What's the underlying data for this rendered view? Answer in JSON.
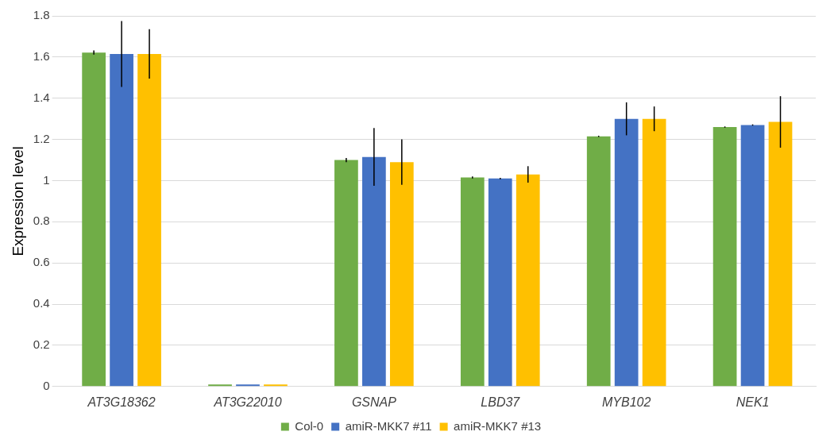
{
  "chart_data": {
    "type": "bar",
    "ylabel": "Expression level",
    "categories": [
      "AT3G18362",
      "AT3G22010",
      "GSNAP",
      "LBD37",
      "MYB102",
      "NEK1"
    ],
    "series": [
      {
        "name": "Col-0",
        "color": "#70ad47",
        "values": [
          1.622,
          0.01,
          1.1,
          1.015,
          1.215,
          1.26
        ],
        "errors": [
          0.01,
          null,
          0.01,
          0.005,
          0.003,
          0.003
        ]
      },
      {
        "name": "amiR-MKK7 #11",
        "color": "#4472c4",
        "values": [
          1.615,
          0.01,
          1.115,
          1.01,
          1.3,
          1.27
        ],
        "errors": [
          0.16,
          null,
          0.14,
          0.003,
          0.08,
          0.003
        ]
      },
      {
        "name": "amiR-MKK7 #13",
        "color": "#ffc000",
        "values": [
          1.615,
          0.01,
          1.09,
          1.03,
          1.3,
          1.285
        ],
        "errors": [
          0.12,
          null,
          0.11,
          0.04,
          0.06,
          0.125
        ]
      }
    ],
    "ylim": [
      0,
      1.8
    ],
    "yticks": [
      0,
      0.2,
      0.4,
      0.6,
      0.8,
      1,
      1.2,
      1.4,
      1.6,
      1.8
    ],
    "grid": "y",
    "legend": "bottom"
  }
}
